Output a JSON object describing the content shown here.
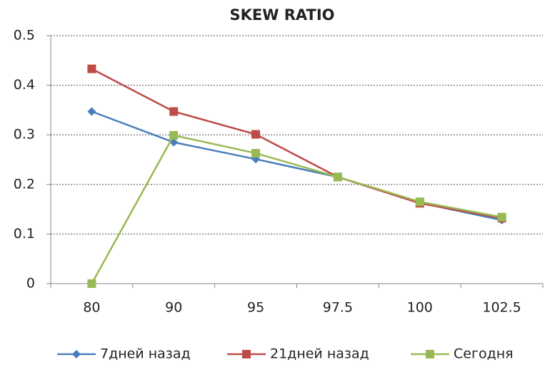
{
  "chart_data": {
    "type": "line",
    "title": "SKEW RATIO",
    "categories": [
      "80",
      "90",
      "95",
      "97.5",
      "100",
      "102.5"
    ],
    "series": [
      {
        "name": "7дней назад",
        "color": "#4a7ebb",
        "marker": "diamond",
        "values": [
          0.347,
          0.285,
          0.251,
          0.215,
          0.163,
          0.128
        ]
      },
      {
        "name": "21дней назад",
        "color": "#be4b48",
        "marker": "square",
        "values": [
          0.433,
          0.347,
          0.301,
          0.215,
          0.162,
          0.132
        ]
      },
      {
        "name": "Сегодня",
        "color": "#98b954",
        "marker": "square",
        "values": [
          0,
          0.299,
          0.263,
          0.215,
          0.165,
          0.134
        ]
      }
    ],
    "ylim": [
      0,
      0.5
    ],
    "yticks": [
      0,
      0.1,
      0.2,
      0.3,
      0.4,
      0.5
    ],
    "grid": true,
    "legend": "bottom"
  }
}
